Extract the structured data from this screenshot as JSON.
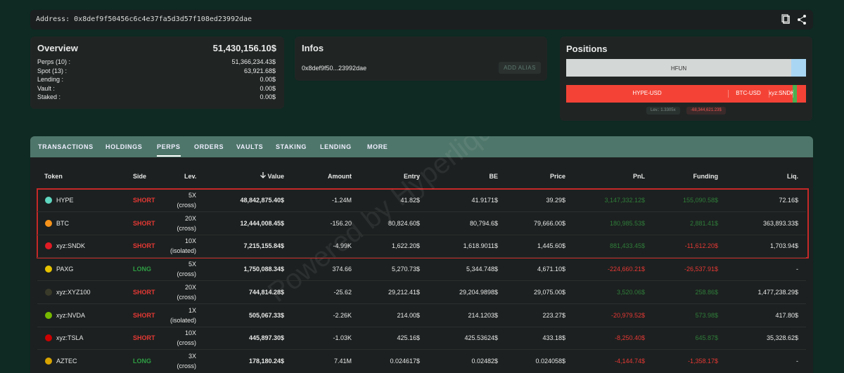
{
  "header": {
    "address": "Address: 0x8def9f50456c6c4e37fa5d3d57f108ed23992dae"
  },
  "overview": {
    "title": "Overview",
    "total": "51,430,156.10$",
    "rows": [
      [
        "Perps (10) :",
        "51,366,234.43$"
      ],
      [
        "Spot (13) :",
        "63,921.68$"
      ],
      [
        "Lending :",
        "0.00$"
      ],
      [
        "Vault :",
        "0.00$"
      ],
      [
        "Staked :",
        "0.00$"
      ]
    ]
  },
  "infos": {
    "title": "Infos",
    "address": "0x8def9f50...23992dae",
    "button": "ADD ALIAS"
  },
  "positions": {
    "title": "Positions",
    "spot": [
      "HFUN"
    ],
    "perps": [
      "HYPE-USD",
      "BTC-USD",
      "xyz:SNDK-U"
    ],
    "leverage": "Lev.: 1.3305x",
    "pnl": "-68,344,621.23$"
  },
  "tabs": {
    "items": [
      "TRANSACTIONS",
      "HOLDINGS",
      "PERPS",
      "ORDERS",
      "VAULTS",
      "STAKING",
      "LENDING",
      "MORE"
    ],
    "active": 2
  },
  "table": {
    "headers": [
      "Token",
      "Side",
      "Lev.",
      "Value",
      "Amount",
      "Entry",
      "BE",
      "Price",
      "PnL",
      "Funding",
      "Liq."
    ],
    "rows": [
      {
        "icon": "#5fd6c0",
        "token": "HYPE",
        "side": "SHORT",
        "lev": "5X",
        "margin": "(cross)",
        "value": "48,842,875.40$",
        "amount": "-1.24M",
        "entry": "41.82$",
        "be": "41.9171$",
        "price": "39.29$",
        "pnl": "3,147,332.12$",
        "funding": "155,090.58$",
        "liq": "72.16$"
      },
      {
        "icon": "#f7931a",
        "token": "BTC",
        "side": "SHORT",
        "lev": "20X",
        "margin": "(cross)",
        "value": "12,444,008.45$",
        "amount": "-156.20",
        "entry": "80,824.60$",
        "be": "80,794.6$",
        "price": "79,666.00$",
        "pnl": "180,985.53$",
        "funding": "2,881.41$",
        "liq": "363,893.33$"
      },
      {
        "icon": "#e01b24",
        "token": "xyz:SNDK",
        "side": "SHORT",
        "lev": "10X",
        "margin": "(isolated)",
        "value": "7,215,155.84$",
        "amount": "-4.99K",
        "entry": "1,622.20$",
        "be": "1,618.9011$",
        "price": "1,445.60$",
        "pnl": "881,433.45$",
        "funding": "-11,612.20$",
        "liq": "1,703.94$"
      },
      {
        "icon": "#e6c200",
        "token": "PAXG",
        "side": "LONG",
        "lev": "5X",
        "margin": "(cross)",
        "value": "1,750,088.34$",
        "amount": "374.66",
        "entry": "5,270.73$",
        "be": "5,344.748$",
        "price": "4,671.10$",
        "pnl": "-224,660.21$",
        "funding": "-26,537.91$",
        "liq": "-"
      },
      {
        "icon": "#3a3a2a",
        "token": "xyz:XYZ100",
        "side": "SHORT",
        "lev": "20X",
        "margin": "(cross)",
        "value": "744,814.28$",
        "amount": "-25.62",
        "entry": "29,212.41$",
        "be": "29,204.9898$",
        "price": "29,075.00$",
        "pnl": "3,520.06$",
        "funding": "258.86$",
        "liq": "1,477,238.29$"
      },
      {
        "icon": "#76b900",
        "token": "xyz:NVDA",
        "side": "SHORT",
        "lev": "1X",
        "margin": "(isolated)",
        "value": "505,067.33$",
        "amount": "-2.26K",
        "entry": "214.00$",
        "be": "214.1203$",
        "price": "223.27$",
        "pnl": "-20,979.52$",
        "funding": "573.98$",
        "liq": "417.80$"
      },
      {
        "icon": "#cc0000",
        "token": "xyz:TSLA",
        "side": "SHORT",
        "lev": "10X",
        "margin": "(cross)",
        "value": "445,897.30$",
        "amount": "-1.03K",
        "entry": "425.16$",
        "be": "425.53624$",
        "price": "433.18$",
        "pnl": "-8,250.40$",
        "funding": "645.87$",
        "liq": "35,328.62$"
      },
      {
        "icon": "#d9a400",
        "token": "AZTEC",
        "side": "LONG",
        "lev": "3X",
        "margin": "(cross)",
        "value": "178,180.24$",
        "amount": "7.41M",
        "entry": "0.024617$",
        "be": "0.02482$",
        "price": "0.024058$",
        "pnl": "-4,144.74$",
        "funding": "-1,358.17$",
        "liq": "-"
      }
    ]
  },
  "watermark": "Powered by Hyperliquid"
}
